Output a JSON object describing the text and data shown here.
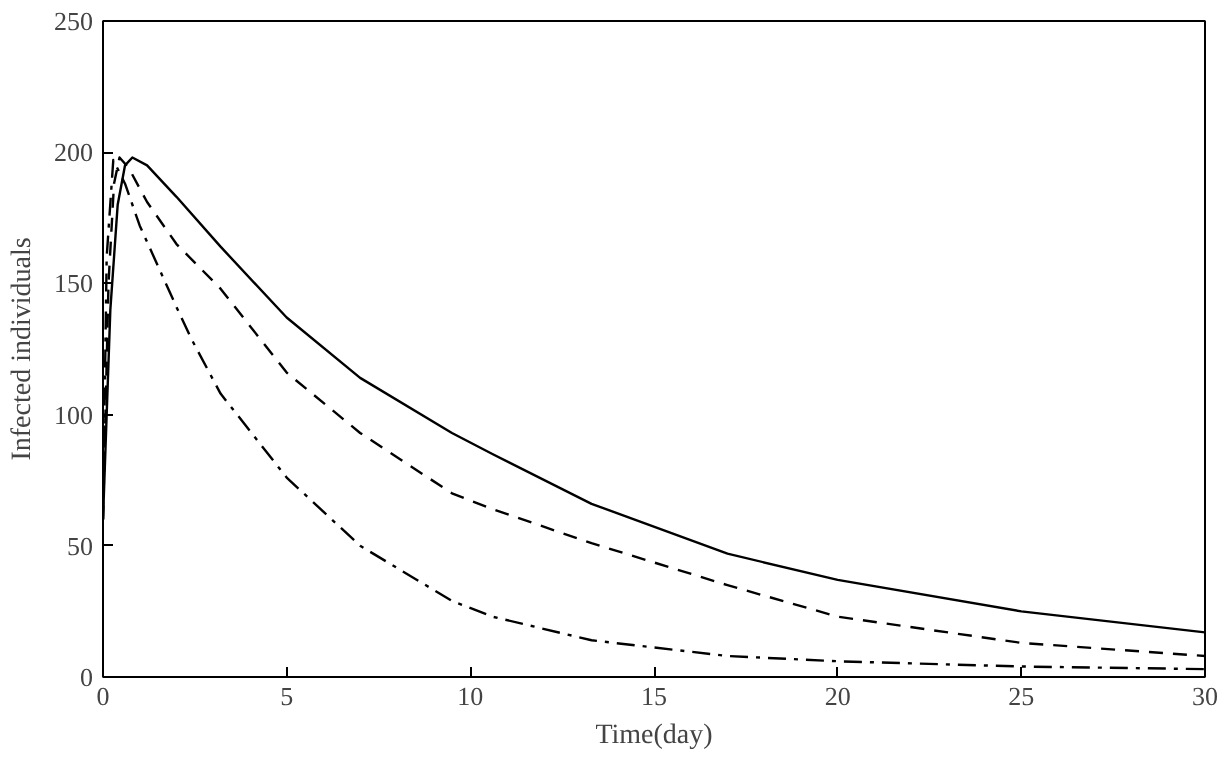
{
  "chart_data": {
    "type": "line",
    "xlabel": "Time(day)",
    "ylabel": "Infected individuals",
    "xlim": [
      0,
      30
    ],
    "ylim": [
      0,
      250
    ],
    "xticks": [
      0,
      5,
      10,
      15,
      20,
      25,
      30
    ],
    "yticks": [
      0,
      50,
      100,
      150,
      200,
      250
    ],
    "grid": false,
    "series": [
      {
        "color": "#000000",
        "line_style": "solid",
        "x": [
          0,
          0.2,
          0.4,
          0.6,
          0.8,
          1.2,
          2,
          3.2,
          5,
          7,
          9.5,
          10.6,
          13.3,
          17,
          20,
          25,
          30
        ],
        "values": [
          60,
          140,
          180,
          195,
          198,
          195,
          183,
          164,
          137,
          114,
          93,
          85,
          66,
          47,
          37,
          25,
          17
        ]
      },
      {
        "color": "#000000",
        "line_style": "dashed",
        "x": [
          0,
          0.15,
          0.3,
          0.45,
          0.7,
          1.2,
          2,
          3.2,
          5,
          7,
          9.5,
          10.6,
          13.3,
          17,
          20,
          25,
          30
        ],
        "values": [
          60,
          150,
          188,
          198,
          194,
          181,
          165,
          148,
          116,
          93,
          70,
          64,
          51,
          35,
          23,
          13,
          8
        ]
      },
      {
        "color": "#000000",
        "line_style": "dashdot",
        "x": [
          0,
          0.1,
          0.28,
          0.6,
          1,
          2,
          2.4,
          3.2,
          5,
          7,
          9.5,
          10.6,
          13.3,
          17,
          20,
          25,
          30
        ],
        "values": [
          60,
          160,
          197,
          188,
          172,
          141,
          129,
          108,
          76,
          50,
          29,
          23,
          14,
          8,
          6,
          4,
          3
        ]
      }
    ]
  }
}
